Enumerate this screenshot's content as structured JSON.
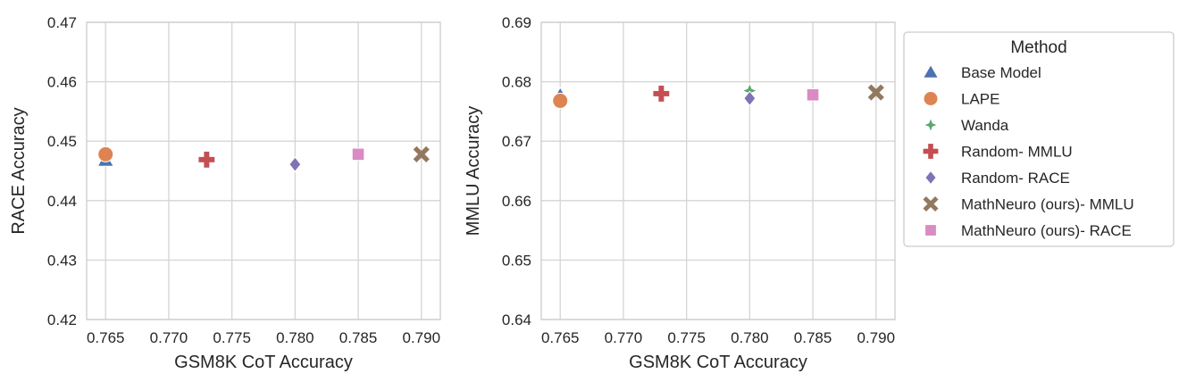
{
  "legend": {
    "title": "Method",
    "placement": "right, outside plots",
    "entries": [
      {
        "name": "Base Model",
        "marker": "triangle",
        "color": "#4c72b0"
      },
      {
        "name": "LAPE",
        "marker": "circle",
        "color": "#dd8452"
      },
      {
        "name": "Wanda",
        "marker": "star",
        "color": "#55a868"
      },
      {
        "name": "Random- MMLU",
        "marker": "plus",
        "color": "#c44e52"
      },
      {
        "name": "Random- RACE",
        "marker": "diamond",
        "color": "#8172b3"
      },
      {
        "name": "MathNeuro (ours)- MMLU",
        "marker": "x",
        "color": "#937860"
      },
      {
        "name": "MathNeuro (ours)- RACE",
        "marker": "square",
        "color": "#da8bc3"
      }
    ]
  },
  "chart_data": [
    {
      "type": "scatter",
      "title": "",
      "xlabel": "GSM8K CoT Accuracy",
      "ylabel": "RACE Accuracy",
      "xlim": [
        0.7635,
        0.7915
      ],
      "ylim": [
        0.42,
        0.47
      ],
      "xticks": [
        "0.765",
        "0.770",
        "0.775",
        "0.780",
        "0.785",
        "0.790"
      ],
      "yticks": [
        "0.42",
        "0.43",
        "0.44",
        "0.45",
        "0.46",
        "0.47"
      ],
      "grid": true,
      "series": [
        {
          "name": "Base Model",
          "x": 0.765,
          "y": 0.4468
        },
        {
          "name": "LAPE",
          "x": 0.765,
          "y": 0.4478
        },
        {
          "name": "Wanda",
          "x": 0.78,
          "y": 0.446
        },
        {
          "name": "Random- MMLU",
          "x": 0.773,
          "y": 0.4469
        },
        {
          "name": "Random- RACE",
          "x": 0.78,
          "y": 0.4461
        },
        {
          "name": "MathNeuro (ours)- MMLU",
          "x": 0.79,
          "y": 0.4478
        },
        {
          "name": "MathNeuro (ours)- RACE",
          "x": 0.785,
          "y": 0.4478
        }
      ]
    },
    {
      "type": "scatter",
      "title": "",
      "xlabel": "GSM8K CoT Accuracy",
      "ylabel": "MMLU Accuracy",
      "xlim": [
        0.7635,
        0.7915
      ],
      "ylim": [
        0.64,
        0.69
      ],
      "xticks": [
        "0.765",
        "0.770",
        "0.775",
        "0.780",
        "0.785",
        "0.790"
      ],
      "yticks": [
        "0.64",
        "0.65",
        "0.66",
        "0.67",
        "0.68",
        "0.69"
      ],
      "grid": true,
      "series": [
        {
          "name": "Base Model",
          "x": 0.765,
          "y": 0.6777
        },
        {
          "name": "LAPE",
          "x": 0.765,
          "y": 0.6768
        },
        {
          "name": "Wanda",
          "x": 0.78,
          "y": 0.6785
        },
        {
          "name": "Random- MMLU",
          "x": 0.773,
          "y": 0.678
        },
        {
          "name": "Random- RACE",
          "x": 0.78,
          "y": 0.6772
        },
        {
          "name": "MathNeuro (ours)- MMLU",
          "x": 0.79,
          "y": 0.6782
        },
        {
          "name": "MathNeuro (ours)- RACE",
          "x": 0.785,
          "y": 0.6778
        }
      ]
    }
  ]
}
